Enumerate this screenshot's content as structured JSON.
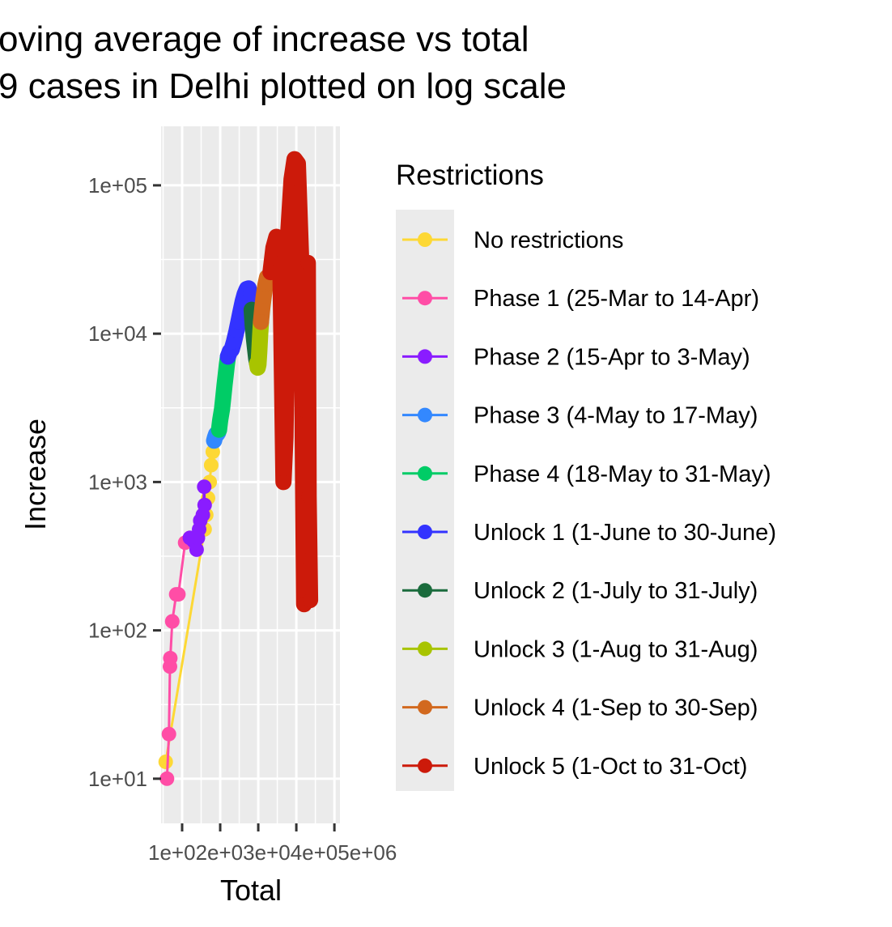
{
  "chart_data": {
    "type": "line",
    "title_line1": "oving average of increase vs total",
    "title_line2": "9 cases in Delhi plotted on log scale",
    "xlabel": "Total",
    "ylabel": "Increase",
    "x_scale": "log10",
    "y_scale": "log10",
    "xlim": [
      28,
      1400000
    ],
    "ylim": [
      5,
      250000
    ],
    "grid": true,
    "x_ticks": [
      100,
      1000,
      10000,
      100000,
      1000000
    ],
    "x_tick_labels": [
      "1e+02",
      "1e+03",
      "1e+04",
      "1e+05",
      "1e+06"
    ],
    "x_tick_overlap_text": "1e+02e+03e+04e+05e+06",
    "y_ticks": [
      10,
      100,
      1000,
      10000,
      100000
    ],
    "y_tick_labels": [
      "1e+01",
      "1e+02",
      "1e+03",
      "1e+04",
      "1e+05"
    ],
    "legend_title": "Restrictions",
    "legend_position": "right",
    "series": [
      {
        "name": "No restrictions",
        "color": "#FDD835",
        "thick": false,
        "points": [
          [
            37,
            13
          ],
          [
            390,
            480
          ],
          [
            430,
            600
          ],
          [
            480,
            780
          ],
          [
            530,
            1000
          ],
          [
            580,
            1300
          ],
          [
            640,
            1600
          ],
          [
            690,
            1900
          ]
        ]
      },
      {
        "name": "Phase 1 (25-Mar to 14-Apr)",
        "color": "#FF4DA6",
        "thick": false,
        "points": [
          [
            40,
            10
          ],
          [
            45,
            20
          ],
          [
            48,
            57
          ],
          [
            49,
            65
          ],
          [
            55,
            115
          ],
          [
            70,
            175
          ],
          [
            80,
            175
          ],
          [
            120,
            390
          ],
          [
            160,
            420
          ]
        ]
      },
      {
        "name": "Phase 2 (15-Apr to 3-May)",
        "color": "#8A1CFF",
        "thick": false,
        "points": [
          [
            160,
            420
          ],
          [
            200,
            400
          ],
          [
            240,
            350
          ],
          [
            260,
            420
          ],
          [
            280,
            480
          ],
          [
            300,
            550
          ],
          [
            350,
            600
          ],
          [
            380,
            930
          ],
          [
            390,
            700
          ]
        ]
      },
      {
        "name": "Phase 3 (4-May to 17-May)",
        "color": "#3388FF",
        "thick": true,
        "points": [
          [
            690,
            1900
          ],
          [
            730,
            2000
          ],
          [
            780,
            2100
          ],
          [
            830,
            2100
          ],
          [
            880,
            2150
          ],
          [
            930,
            2250
          ]
        ]
      },
      {
        "name": "Phase 4 (18-May to 31-May)",
        "color": "#00CC66",
        "thick": true,
        "points": [
          [
            930,
            2250
          ],
          [
            1000,
            2600
          ],
          [
            1120,
            3100
          ],
          [
            1200,
            3700
          ],
          [
            1300,
            4500
          ],
          [
            1400,
            5300
          ],
          [
            1500,
            6200
          ],
          [
            1600,
            7000
          ]
        ]
      },
      {
        "name": "Unlock 1 (1-June to 30-June)",
        "color": "#3333FF",
        "thick": true,
        "points": [
          [
            1600,
            7000
          ],
          [
            1800,
            7600
          ],
          [
            2000,
            7800
          ],
          [
            2300,
            8800
          ],
          [
            2700,
            10500
          ],
          [
            3000,
            12000
          ],
          [
            3400,
            14000
          ],
          [
            3900,
            16500
          ],
          [
            4400,
            18500
          ],
          [
            5000,
            20000
          ],
          [
            5600,
            20200
          ],
          [
            6200,
            18500
          ],
          [
            6700,
            14500
          ]
        ]
      },
      {
        "name": "Unlock 2 (1-July to 31-July)",
        "color": "#1A6B3C",
        "thick": true,
        "points": [
          [
            6700,
            14500
          ],
          [
            7100,
            11500
          ],
          [
            7600,
            9500
          ],
          [
            8200,
            8000
          ],
          [
            8800,
            6800
          ],
          [
            9300,
            6300
          ]
        ]
      },
      {
        "name": "Unlock 3 (1-Aug to 31-Aug)",
        "color": "#A8C400",
        "thick": true,
        "points": [
          [
            9300,
            6300
          ],
          [
            9700,
            5900
          ],
          [
            10100,
            6200
          ],
          [
            10600,
            7500
          ],
          [
            11200,
            9800
          ],
          [
            11800,
            12000
          ]
        ]
      },
      {
        "name": "Unlock 4 (1-Sep to 30-Sep)",
        "color": "#D2691E",
        "thick": true,
        "points": [
          [
            11800,
            12000
          ],
          [
            12800,
            15000
          ],
          [
            14000,
            18000
          ],
          [
            15500,
            21500
          ],
          [
            17000,
            24000
          ],
          [
            19000,
            22000
          ],
          [
            21000,
            26000
          ]
        ]
      },
      {
        "name": "Unlock 5 (1-Oct to 31-Oct)",
        "color": "#CC1A0A",
        "thick": true,
        "points": [
          [
            21000,
            26000
          ],
          [
            25000,
            38000
          ],
          [
            30000,
            45000
          ],
          [
            38000,
            30000
          ],
          [
            46000,
            1000
          ],
          [
            52000,
            2000
          ],
          [
            62000,
            50000
          ],
          [
            75000,
            110000
          ],
          [
            90000,
            150000
          ],
          [
            110000,
            140000
          ],
          [
            135000,
            30000
          ],
          [
            160000,
            150
          ],
          [
            180000,
            3000
          ],
          [
            200000,
            30000
          ],
          [
            210000,
            800
          ],
          [
            222000,
            300
          ],
          [
            230000,
            160
          ]
        ]
      }
    ]
  }
}
